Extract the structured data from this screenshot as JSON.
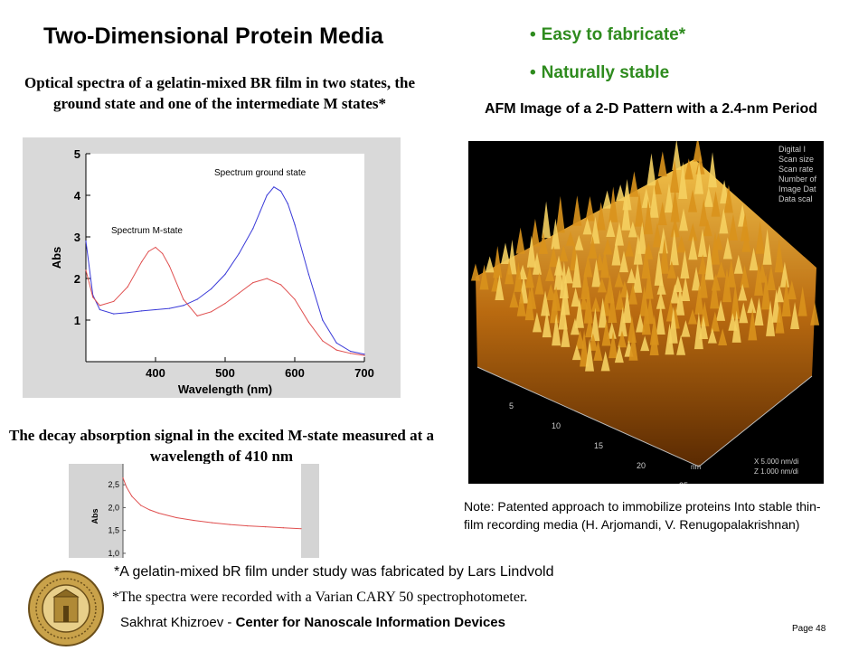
{
  "slide": {
    "title": "Two-Dimensional Protein Media",
    "bullets": [
      "Easy to fabricate*",
      "Naturally stable"
    ],
    "spectra_caption": "Optical spectra of a gelatin-mixed BR film in two states, the ground state and one of the intermediate M states*",
    "afm_caption": "AFM Image of a 2-D Pattern with a 2.4-nm Period",
    "decay_caption": "The decay absorption signal in the excited M-state measured at a wavelength of 410 nm",
    "note": "Note: Patented approach to immobilize proteins Into stable thin-film recording media (H. Arjomandi, V. Renugopalakrishnan)",
    "fabricated_note": "*A gelatin-mixed bR film under study was fabricated by Lars Lindvold",
    "spectro_note": "*The spectra were recorded with a Varian CARY 50 spectrophotometer.",
    "footer_author": "Sakhrat Khizroev - ",
    "footer_center": "Center for Nanoscale Information Devices",
    "page_number": "Page 48",
    "bullet_color": "#2e8b1e"
  },
  "afm": {
    "overlay_lines": [
      "Digital I",
      "Scan size",
      "Scan rate",
      "Number of",
      "Image Dat",
      "Data scal"
    ],
    "axis_ticks": [
      "5",
      "10",
      "15",
      "20",
      "25"
    ],
    "axis_unit": "nm",
    "scale_lines": [
      "X  5.000 nm/di",
      "Z  1.000 nm/di"
    ]
  },
  "chart_data": [
    {
      "type": "line",
      "xlabel": "Wavelength (nm)",
      "ylabel": "Abs",
      "xlim": [
        300,
        700
      ],
      "ylim": [
        0,
        5
      ],
      "xticks": [
        400,
        500,
        600,
        700
      ],
      "yticks": [
        1,
        2,
        3,
        4,
        5
      ],
      "annotations": [
        "Spectrum ground state",
        "Spectrum M-state"
      ],
      "series": [
        {
          "name": "Spectrum ground state",
          "color": "#3a3ad8",
          "x": [
            300,
            310,
            320,
            340,
            360,
            380,
            400,
            420,
            440,
            460,
            480,
            500,
            520,
            540,
            550,
            560,
            570,
            580,
            590,
            600,
            620,
            640,
            660,
            680,
            700
          ],
          "y": [
            2.9,
            1.6,
            1.25,
            1.15,
            1.18,
            1.22,
            1.25,
            1.28,
            1.35,
            1.5,
            1.75,
            2.1,
            2.6,
            3.2,
            3.6,
            4.0,
            4.2,
            4.1,
            3.8,
            3.3,
            2.1,
            1.0,
            0.45,
            0.25,
            0.18
          ]
        },
        {
          "name": "Spectrum M-state",
          "color": "#e05050",
          "x": [
            300,
            310,
            320,
            340,
            360,
            380,
            390,
            400,
            410,
            420,
            440,
            460,
            480,
            500,
            520,
            540,
            560,
            580,
            600,
            620,
            640,
            660,
            680,
            700
          ],
          "y": [
            2.2,
            1.55,
            1.35,
            1.45,
            1.8,
            2.4,
            2.65,
            2.75,
            2.6,
            2.3,
            1.5,
            1.1,
            1.2,
            1.4,
            1.65,
            1.9,
            2.0,
            1.85,
            1.5,
            0.95,
            0.5,
            0.28,
            0.2,
            0.15
          ]
        }
      ]
    },
    {
      "type": "line",
      "ylabel": "Abs",
      "ylim": [
        0.9,
        2.8
      ],
      "yticks": [
        1.0,
        1.5,
        2.0,
        2.5
      ],
      "ytick_labels": [
        "1,0",
        "1,5",
        "2,0",
        "2,5"
      ],
      "series": [
        {
          "color": "#e05050",
          "x": [
            0,
            0.02,
            0.05,
            0.1,
            0.15,
            0.2,
            0.3,
            0.4,
            0.5,
            0.6,
            0.7,
            0.8,
            0.9,
            1.0
          ],
          "y": [
            2.65,
            2.45,
            2.25,
            2.05,
            1.95,
            1.88,
            1.78,
            1.72,
            1.67,
            1.63,
            1.6,
            1.58,
            1.56,
            1.54
          ]
        }
      ]
    }
  ]
}
